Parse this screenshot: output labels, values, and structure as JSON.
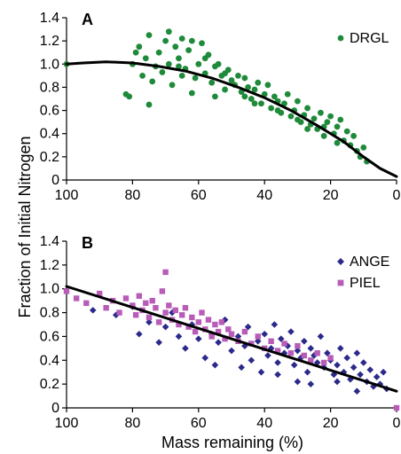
{
  "figure": {
    "ylabel": "Fraction of Initial Nitrogen",
    "xlabel": "Mass remaining (%)"
  },
  "chart_data": [
    {
      "type": "scatter",
      "panel": "A",
      "xlim": [
        100,
        0
      ],
      "ylim": [
        0,
        1.4
      ],
      "xticks": [
        "100",
        "80",
        "60",
        "40",
        "20",
        "0"
      ],
      "yticks": [
        "0",
        "0.2",
        "0.4",
        "0.6",
        "0.8",
        "1.0",
        "1.2",
        "1.4"
      ],
      "legend_position": "top-right",
      "series": [
        {
          "name": "DRGL",
          "color": "#1e8a3a",
          "marker": "circle",
          "points": [
            [
              100,
              1.0
            ],
            [
              82,
              0.74
            ],
            [
              81,
              0.72
            ],
            [
              80,
              1.0
            ],
            [
              79,
              1.1
            ],
            [
              78,
              1.15
            ],
            [
              77,
              0.9
            ],
            [
              76,
              1.05
            ],
            [
              75,
              1.25
            ],
            [
              75,
              0.65
            ],
            [
              74,
              0.85
            ],
            [
              73,
              0.98
            ],
            [
              72,
              1.1
            ],
            [
              71,
              0.93
            ],
            [
              70,
              1.2
            ],
            [
              69,
              1.28
            ],
            [
              69,
              1.0
            ],
            [
              68,
              0.82
            ],
            [
              67,
              1.15
            ],
            [
              66,
              1.05
            ],
            [
              65,
              1.22
            ],
            [
              65,
              0.9
            ],
            [
              64,
              0.96
            ],
            [
              63,
              1.12
            ],
            [
              62,
              1.2
            ],
            [
              62,
              0.75
            ],
            [
              61,
              0.88
            ],
            [
              60,
              1.0
            ],
            [
              59,
              1.18
            ],
            [
              58,
              0.92
            ],
            [
              57,
              1.08
            ],
            [
              56,
              0.84
            ],
            [
              55,
              0.98
            ],
            [
              55,
              0.72
            ],
            [
              54,
              1.0
            ],
            [
              53,
              0.9
            ],
            [
              52,
              0.78
            ],
            [
              51,
              0.95
            ],
            [
              50,
              0.86
            ],
            [
              49,
              0.82
            ],
            [
              48,
              0.9
            ],
            [
              47,
              0.76
            ],
            [
              46,
              0.88
            ],
            [
              45,
              0.8
            ],
            [
              44,
              0.7
            ],
            [
              43,
              0.78
            ],
            [
              42,
              0.84
            ],
            [
              41,
              0.66
            ],
            [
              40,
              0.74
            ],
            [
              39,
              0.82
            ],
            [
              38,
              0.62
            ],
            [
              37,
              0.72
            ],
            [
              36,
              0.68
            ],
            [
              35,
              0.58
            ],
            [
              34,
              0.66
            ],
            [
              33,
              0.74
            ],
            [
              32,
              0.55
            ],
            [
              31,
              0.6
            ],
            [
              30,
              0.68
            ],
            [
              29,
              0.5
            ],
            [
              28,
              0.56
            ],
            [
              27,
              0.62
            ],
            [
              26,
              0.48
            ],
            [
              25,
              0.53
            ],
            [
              24,
              0.44
            ],
            [
              23,
              0.58
            ],
            [
              22,
              0.46
            ],
            [
              21,
              0.5
            ],
            [
              20,
              0.55
            ],
            [
              19,
              0.4
            ],
            [
              18,
              0.46
            ],
            [
              17,
              0.52
            ],
            [
              16,
              0.34
            ],
            [
              15,
              0.42
            ],
            [
              14,
              0.3
            ],
            [
              13,
              0.38
            ],
            [
              12,
              0.25
            ],
            [
              11,
              0.2
            ],
            [
              10,
              0.28
            ],
            [
              9,
              0.16
            ],
            [
              66,
              0.98
            ],
            [
              58,
              1.05
            ],
            [
              52,
              0.92
            ],
            [
              46,
              0.72
            ],
            [
              43,
              0.66
            ],
            [
              36,
              0.6
            ],
            [
              30,
              0.52
            ],
            [
              27,
              0.44
            ],
            [
              22,
              0.38
            ],
            [
              18,
              0.32
            ]
          ]
        },
        {
          "name": "",
          "color": "#000000",
          "marker": "line",
          "points": [
            [
              100,
              1.0
            ],
            [
              95,
              1.01
            ],
            [
              88,
              1.02
            ],
            [
              80,
              1.01
            ],
            [
              72,
              0.98
            ],
            [
              64,
              0.94
            ],
            [
              56,
              0.88
            ],
            [
              48,
              0.8
            ],
            [
              40,
              0.71
            ],
            [
              32,
              0.6
            ],
            [
              24,
              0.47
            ],
            [
              16,
              0.33
            ],
            [
              10,
              0.2
            ],
            [
              5,
              0.1
            ],
            [
              0,
              0.03
            ]
          ]
        }
      ]
    },
    {
      "type": "scatter",
      "panel": "B",
      "xlim": [
        100,
        0
      ],
      "ylim": [
        0,
        1.4
      ],
      "xticks": [
        "100",
        "80",
        "60",
        "40",
        "20",
        "0"
      ],
      "yticks": [
        "0",
        "0.2",
        "0.4",
        "0.6",
        "0.8",
        "1.0",
        "1.2",
        "1.4"
      ],
      "legend_position": "top-right",
      "series": [
        {
          "name": "ANGE",
          "color": "#2b2a8a",
          "marker": "diamond",
          "points": [
            [
              92,
              0.82
            ],
            [
              85,
              0.78
            ],
            [
              80,
              0.85
            ],
            [
              78,
              0.62
            ],
            [
              75,
              0.72
            ],
            [
              72,
              0.55
            ],
            [
              70,
              0.68
            ],
            [
              68,
              0.8
            ],
            [
              66,
              0.6
            ],
            [
              64,
              0.5
            ],
            [
              62,
              0.7
            ],
            [
              60,
              0.58
            ],
            [
              58,
              0.42
            ],
            [
              56,
              0.62
            ],
            [
              54,
              0.55
            ],
            [
              52,
              0.74
            ],
            [
              50,
              0.48
            ],
            [
              48,
              0.6
            ],
            [
              46,
              0.52
            ],
            [
              45,
              0.68
            ],
            [
              44,
              0.4
            ],
            [
              42,
              0.56
            ],
            [
              40,
              0.62
            ],
            [
              39,
              0.44
            ],
            [
              38,
              0.5
            ],
            [
              37,
              0.7
            ],
            [
              36,
              0.38
            ],
            [
              35,
              0.58
            ],
            [
              34,
              0.46
            ],
            [
              33,
              0.52
            ],
            [
              32,
              0.64
            ],
            [
              31,
              0.36
            ],
            [
              30,
              0.48
            ],
            [
              29,
              0.42
            ],
            [
              28,
              0.56
            ],
            [
              27,
              0.3
            ],
            [
              26,
              0.5
            ],
            [
              25,
              0.44
            ],
            [
              24,
              0.38
            ],
            [
              23,
              0.6
            ],
            [
              22,
              0.34
            ],
            [
              21,
              0.46
            ],
            [
              20,
              0.4
            ],
            [
              19,
              0.28
            ],
            [
              18,
              0.36
            ],
            [
              17,
              0.5
            ],
            [
              16,
              0.3
            ],
            [
              15,
              0.42
            ],
            [
              14,
              0.24
            ],
            [
              13,
              0.34
            ],
            [
              12,
              0.46
            ],
            [
              11,
              0.28
            ],
            [
              10,
              0.38
            ],
            [
              9,
              0.22
            ],
            [
              8,
              0.32
            ],
            [
              7,
              0.18
            ],
            [
              6,
              0.26
            ],
            [
              5,
              0.2
            ],
            [
              4,
              0.3
            ],
            [
              3,
              0.16
            ],
            [
              55,
              0.36
            ],
            [
              47,
              0.34
            ],
            [
              41,
              0.3
            ],
            [
              36,
              0.28
            ],
            [
              30,
              0.22
            ],
            [
              26,
              0.2
            ],
            [
              18,
              0.22
            ],
            [
              12,
              0.14
            ]
          ]
        },
        {
          "name": "PIEL",
          "color": "#b85cb8",
          "marker": "square",
          "points": [
            [
              100,
              0.98
            ],
            [
              97,
              0.92
            ],
            [
              94,
              0.88
            ],
            [
              90,
              0.96
            ],
            [
              88,
              0.84
            ],
            [
              86,
              0.9
            ],
            [
              84,
              0.8
            ],
            [
              82,
              0.92
            ],
            [
              80,
              0.86
            ],
            [
              79,
              0.78
            ],
            [
              78,
              0.94
            ],
            [
              77,
              0.82
            ],
            [
              76,
              0.88
            ],
            [
              75,
              0.76
            ],
            [
              74,
              0.9
            ],
            [
              73,
              0.84
            ],
            [
              72,
              0.72
            ],
            [
              71,
              0.98
            ],
            [
              70,
              1.14
            ],
            [
              70,
              0.8
            ],
            [
              69,
              0.86
            ],
            [
              68,
              0.74
            ],
            [
              67,
              0.82
            ],
            [
              66,
              0.7
            ],
            [
              65,
              0.78
            ],
            [
              64,
              0.84
            ],
            [
              63,
              0.68
            ],
            [
              62,
              0.76
            ],
            [
              61,
              0.64
            ],
            [
              60,
              0.72
            ],
            [
              59,
              0.8
            ],
            [
              58,
              0.66
            ],
            [
              57,
              0.74
            ],
            [
              56,
              0.6
            ],
            [
              55,
              0.7
            ],
            [
              54,
              0.64
            ],
            [
              53,
              0.72
            ],
            [
              52,
              0.58
            ],
            [
              51,
              0.66
            ],
            [
              50,
              0.62
            ],
            [
              48,
              0.56
            ],
            [
              46,
              0.64
            ],
            [
              44,
              0.54
            ],
            [
              42,
              0.6
            ],
            [
              40,
              0.5
            ],
            [
              38,
              0.56
            ],
            [
              36,
              0.48
            ],
            [
              34,
              0.54
            ],
            [
              32,
              0.46
            ],
            [
              30,
              0.52
            ],
            [
              28,
              0.44
            ],
            [
              26,
              0.4
            ],
            [
              24,
              0.46
            ],
            [
              22,
              0.38
            ],
            [
              20,
              0.42
            ],
            [
              0,
              0.0
            ]
          ]
        },
        {
          "name": "",
          "color": "#000000",
          "marker": "line",
          "points": [
            [
              100,
              1.02
            ],
            [
              0,
              0.14
            ]
          ]
        }
      ]
    }
  ]
}
